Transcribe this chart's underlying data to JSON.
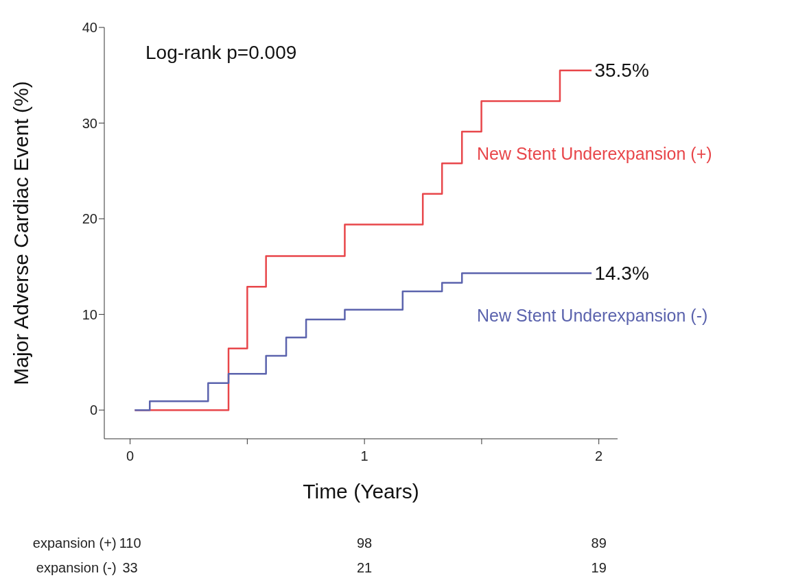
{
  "chart_data": {
    "type": "step",
    "xlabel": "Time (Years)",
    "ylabel": "Major Adverse Cardiac Event (%)",
    "xlim": [
      -0.11,
      2.08
    ],
    "ylim": [
      -3,
      40
    ],
    "xticks": [
      0,
      {
        "value": 0.5,
        "label": null
      },
      1,
      {
        "value": 1.5,
        "label": null
      },
      2
    ],
    "yticks": [
      0,
      10,
      20,
      30,
      40
    ],
    "marker": "none",
    "line_style": "solid",
    "series": [
      {
        "name": "New Stent Underexpansion (+)",
        "color": "#e8464a",
        "x": [
          0.02,
          0.42,
          0.5,
          0.58,
          0.916,
          1.249,
          1.331,
          1.416,
          1.499,
          1.834,
          1.969
        ],
        "values": [
          0,
          6.45,
          12.9,
          16.1,
          19.4,
          22.6,
          25.8,
          29.1,
          32.3,
          35.5,
          35.5
        ]
      },
      {
        "name": "New Stent Underexpansion (-)",
        "color": "#5b63ad",
        "x": [
          0.02,
          0.084,
          0.333,
          0.42,
          0.58,
          0.666,
          0.751,
          0.916,
          1.163,
          1.331,
          1.416,
          1.969
        ],
        "values": [
          0,
          0.93,
          2.82,
          3.79,
          5.68,
          7.59,
          9.47,
          10.5,
          12.4,
          13.3,
          14.3,
          14.3
        ]
      }
    ],
    "annotations": [
      "Log-rank p=0.009",
      {
        "text": "35.5%",
        "x": 1.97,
        "y": 35.5
      },
      {
        "text": "14.3%",
        "x": 1.97,
        "y": 14.3
      },
      "expansion (+)",
      "110",
      "98",
      "89",
      "expansion (-)",
      "33",
      "21",
      "19"
    ]
  }
}
